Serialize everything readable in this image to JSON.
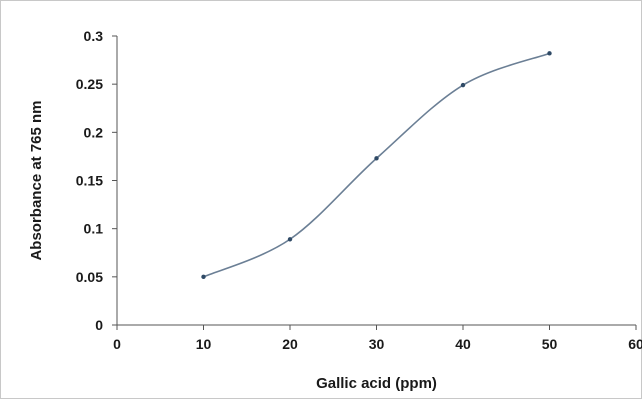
{
  "chart_data": {
    "type": "scatter",
    "title": "",
    "xlabel": "Gallic acid (ppm)",
    "ylabel": "Absorbance at 765 nm",
    "xlim": [
      0,
      60
    ],
    "ylim": [
      0,
      0.3
    ],
    "x_ticks": [
      "0",
      "10",
      "20",
      "30",
      "40",
      "50",
      "60"
    ],
    "y_ticks": [
      "0",
      "0.05",
      "0.1",
      "0.15",
      "0.2",
      "0.25",
      "0.3"
    ],
    "grid": false,
    "legend": "none",
    "smoothed_line": true,
    "series": [
      {
        "x": [
          10,
          20,
          30,
          40,
          50
        ],
        "y": [
          0.05,
          0.089,
          0.173,
          0.249,
          0.282
        ],
        "color": "#6b7f95",
        "marker_color": "#2f4a66"
      }
    ]
  }
}
